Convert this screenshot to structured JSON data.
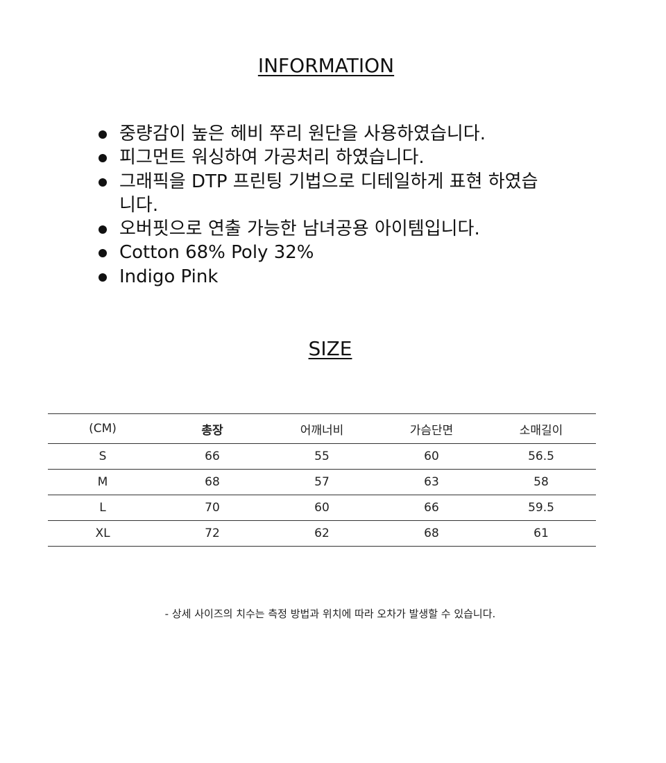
{
  "information": {
    "title": "INFORMATION",
    "items": [
      "중량감이 높은 헤비 쭈리 원단을 사용하였습니다.",
      "피그먼트 워싱하여 가공처리 하였습니다.",
      "그래픽을 DTP 프린팅 기법으로 디테일하게 표현 하였습니다.",
      "오버핏으로 연출 가능한 남녀공용 아이템입니다.",
      "Cotton 68% Poly 32%",
      "Indigo Pink"
    ]
  },
  "size": {
    "title": "SIZE",
    "headers": [
      "(CM)",
      "총장",
      "어깨너비",
      "가슴단면",
      "소매길이"
    ],
    "rows": [
      [
        "S",
        "66",
        "55",
        "60",
        "56.5"
      ],
      [
        "M",
        "68",
        "57",
        "63",
        "58"
      ],
      [
        "L",
        "70",
        "60",
        "66",
        "59.5"
      ],
      [
        "XL",
        "72",
        "62",
        "68",
        "61"
      ]
    ],
    "note": "- 상세 사이즈의 치수는 측정 방법과 위치에 따라 오차가 발생할 수 있습니다."
  }
}
